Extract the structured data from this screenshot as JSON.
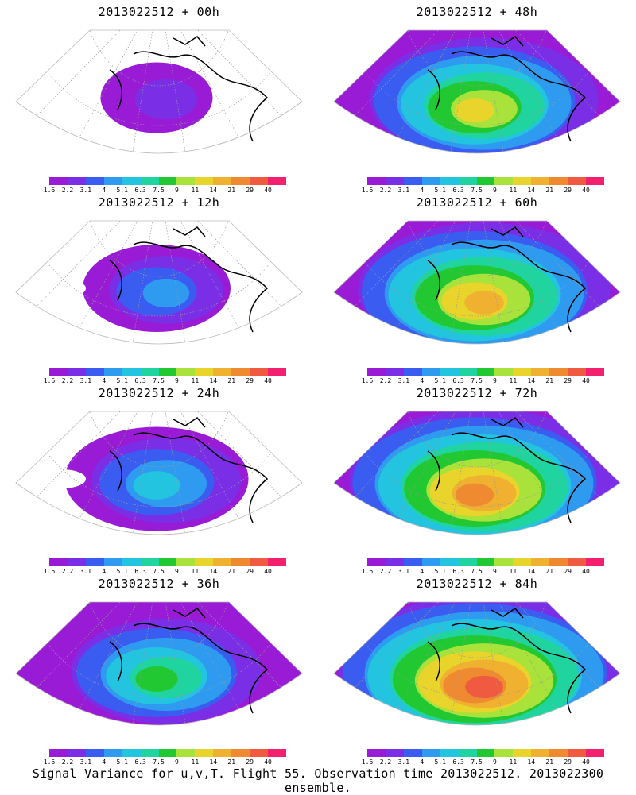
{
  "colorscale": {
    "ticks": [
      "1.6",
      "2.2",
      "3.1",
      "4",
      "5.1",
      "6.3",
      "7.5",
      "9",
      "11",
      "14",
      "21",
      "29",
      "40"
    ],
    "colors": [
      "#9a1bd6",
      "#7a2fe6",
      "#3a5cf0",
      "#2f9bf0",
      "#22c4e0",
      "#20d4a0",
      "#22c832",
      "#a8e23a",
      "#e8d42a",
      "#f0b030",
      "#f08a30",
      "#f05a40",
      "#f2206e"
    ]
  },
  "panels": [
    {
      "title": "2013022512 + 00h",
      "level": 0.15
    },
    {
      "title": "2013022512 + 48h",
      "level": 0.75
    },
    {
      "title": "2013022512 + 12h",
      "level": 0.3
    },
    {
      "title": "2013022512 + 60h",
      "level": 0.85
    },
    {
      "title": "2013022512 + 24h",
      "level": 0.45
    },
    {
      "title": "2013022512 + 72h",
      "level": 0.92
    },
    {
      "title": "2013022512 + 36h",
      "level": 0.6
    },
    {
      "title": "2013022512 + 84h",
      "level": 1.0
    }
  ],
  "caption": "Signal Variance for u,v,T. Flight 55. Observation time 2013022512. 2013022300 ensemble."
}
